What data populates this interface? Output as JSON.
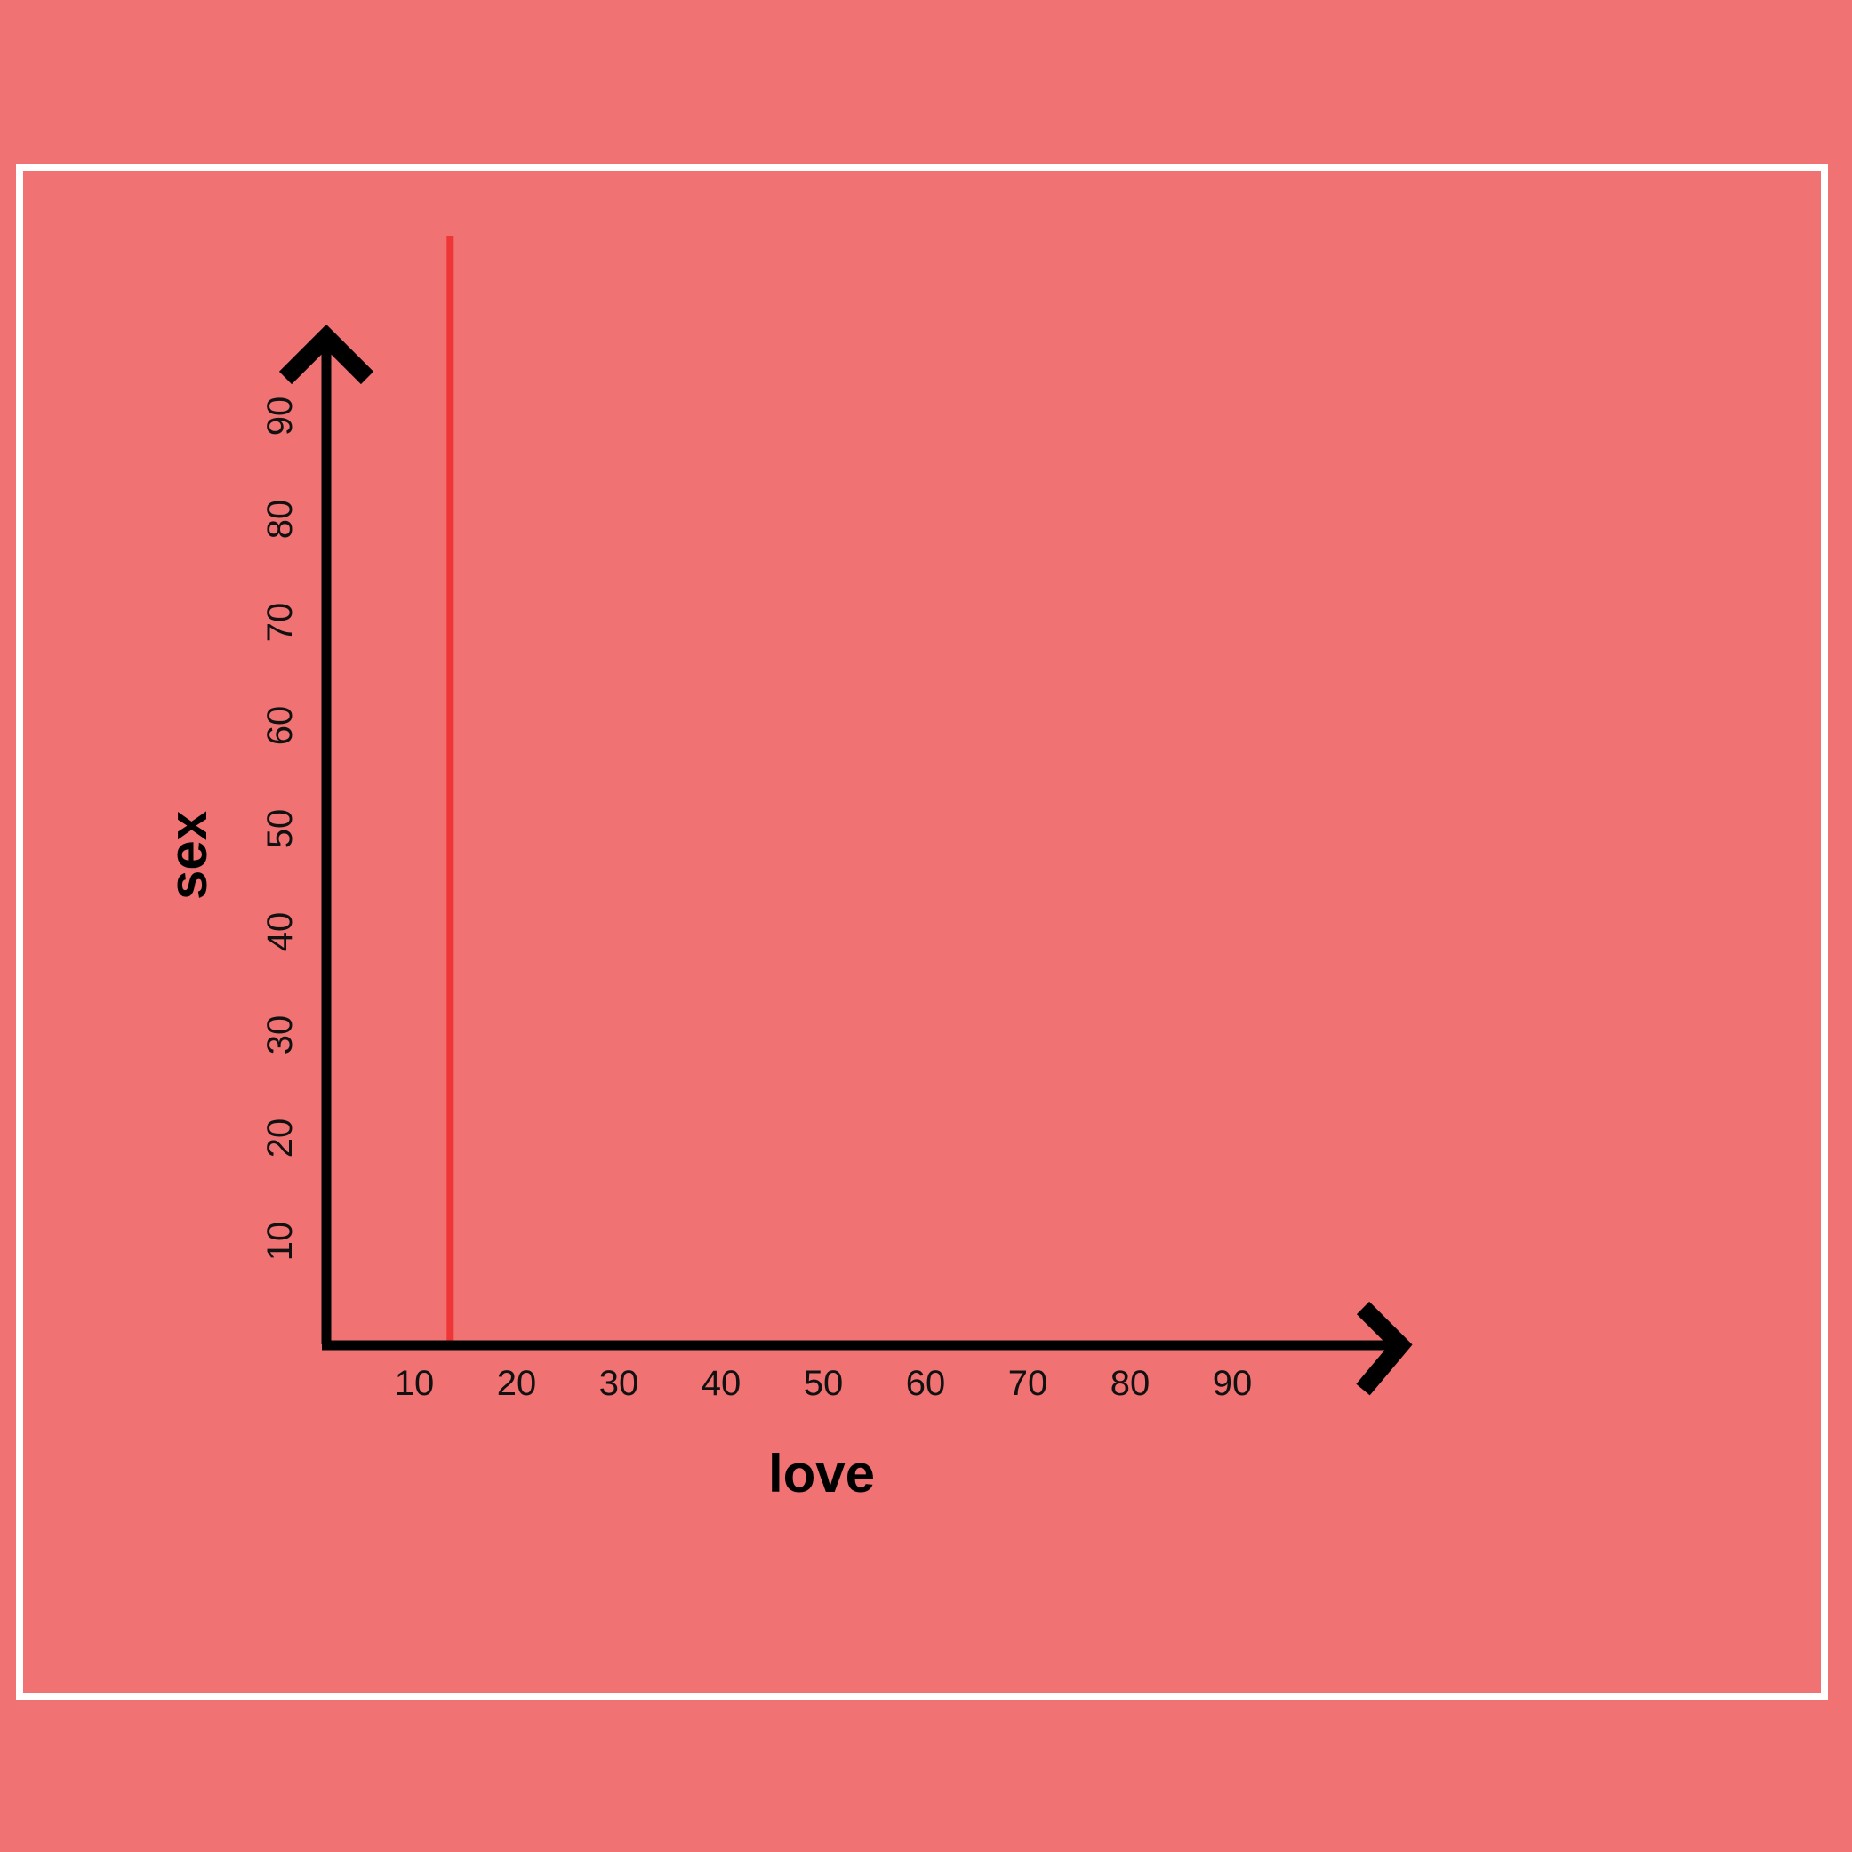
{
  "colors": {
    "background": "#f07272",
    "frame": "#ffffff",
    "axis": "#000000",
    "line": "#ee3636"
  },
  "chart_data": {
    "type": "line",
    "xlabel": "love",
    "ylabel": "sex",
    "x_ticks": [
      10,
      20,
      30,
      40,
      50,
      60,
      70,
      80,
      90
    ],
    "y_ticks": [
      10,
      20,
      30,
      40,
      50,
      60,
      70,
      80,
      90
    ],
    "xlim": [
      0,
      100
    ],
    "ylim": [
      0,
      100
    ],
    "grid": false,
    "legend": "none",
    "series": [
      {
        "x": [
          13.5,
          13.5
        ],
        "y": [
          0,
          107.5
        ]
      }
    ]
  }
}
